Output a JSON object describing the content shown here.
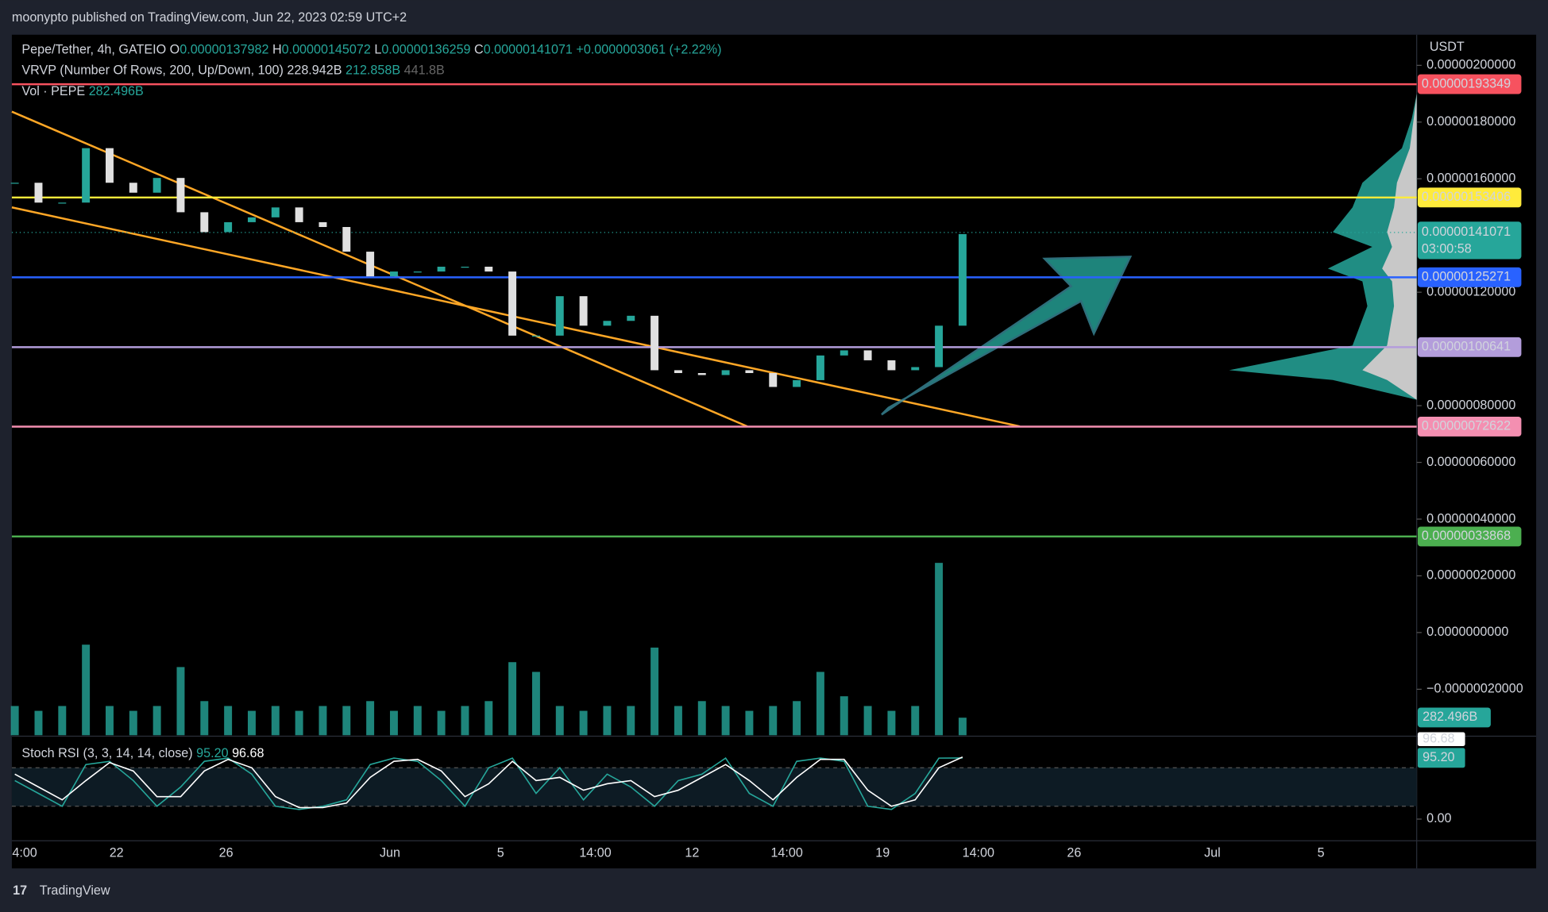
{
  "header": {
    "title": "moonypto published on TradingView.com, Jun 22, 2023 02:59 UTC+2"
  },
  "footer": {
    "brand": "TradingView"
  },
  "chart_data": [
    {
      "type": "candlestick",
      "symbol": "Pepe/Tether, 4h, GATEIO",
      "ohlc": [
        {
          "label": "O",
          "value": "0.00000137982"
        },
        {
          "label": "H",
          "value": "0.00000145072"
        },
        {
          "label": "L",
          "value": "0.00000136259"
        },
        {
          "label": "C",
          "value": "0.00000141071"
        }
      ],
      "change": "+0.0000003061 (+2.22%)",
      "indicator": {
        "name": "VRVP (Number Of Rows, 200, Up/Down, 100)",
        "values": [
          "228.942B",
          "212.858B",
          "441.8B"
        ]
      },
      "currency": "USDT",
      "ylim": [
        -3.62e-07,
        2.108e-06
      ],
      "yticks": [
        {
          "value": 2e-06,
          "label": "0.00000200000"
        },
        {
          "value": 1.8e-06,
          "label": "0.00000180000"
        },
        {
          "value": 1.6e-06,
          "label": "0.00000160000"
        },
        {
          "value": 1.2e-06,
          "label": "0.00000120000"
        },
        {
          "value": 8e-07,
          "label": "0.00000080000"
        },
        {
          "value": 6e-07,
          "label": "0.00000060000"
        },
        {
          "value": 4e-07,
          "label": "0.00000040000"
        },
        {
          "value": 2e-07,
          "label": "0.00000020000"
        },
        {
          "value": 0,
          "label": "0.0000000000"
        },
        {
          "value": -2e-07,
          "label": "−0.00000020000"
        }
      ],
      "closes": [
        1.586e-06,
        1.516e-06,
        1.516e-06,
        1.708e-06,
        1.586e-06,
        1.551e-06,
        1.603e-06,
        1.482e-06,
        1.412e-06,
        1.447e-06,
        1.464e-06,
        1.499e-06,
        1.447e-06,
        1.43e-06,
        1.343e-06,
        1.256e-06,
        1.273e-06,
        1.273e-06,
        1.29e-06,
        1.29e-06,
        1.273e-06,
        1.047e-06,
        1.047e-06,
        1.186e-06,
        1.082e-06,
        1.099e-06,
        1.117e-06,
        9.25e-07,
        9.15e-07,
        9.08e-07,
        9.25e-07,
        9.15e-07,
        8.66e-07,
        8.9e-07,
        9.77e-07,
        9.95e-07,
        9.6e-07,
        9.25e-07,
        9.36e-07,
        1.082e-06,
        1.405e-06
      ],
      "levels": [
        {
          "value": 1.93349e-06,
          "label": "0.00000193349",
          "color": "#f7525f"
        },
        {
          "value": 1.53406e-06,
          "label": "0.00000153406",
          "color": "#ffeb3b"
        },
        {
          "value": 1.25271e-06,
          "label": "0.00000125271",
          "color": "#2962ff"
        },
        {
          "value": 1.00641e-06,
          "label": "0.00000100641",
          "color": "#b39ddb"
        },
        {
          "value": 7.2622e-07,
          "label": "0.00000072622",
          "color": "#f48fb1"
        },
        {
          "value": 3.3868e-07,
          "label": "0.00000033868",
          "color": "#4caf50"
        }
      ],
      "last_price": {
        "value": 1.41071e-06,
        "label": "0.00000141071",
        "countdown": "03:00:58",
        "color": "#26a69a"
      },
      "x_labels": [
        "4:00",
        "22",
        "26",
        "Jun",
        "5",
        "14:00",
        "12",
        "14:00",
        "19",
        "14:00",
        "26",
        "Jul",
        "5"
      ]
    },
    {
      "type": "bar",
      "name": "Vol · PEPE",
      "color": "#26a69a",
      "ylim": [
        0,
        3500
      ],
      "values": [
        471,
        393,
        471,
        1460,
        471,
        393,
        471,
        1099,
        550,
        471,
        393,
        471,
        393,
        471,
        471,
        550,
        393,
        471,
        393,
        471,
        550,
        1178,
        1021,
        471,
        393,
        471,
        471,
        1413,
        471,
        550,
        471,
        393,
        471,
        550,
        1021,
        628,
        471,
        393,
        471,
        2779,
        282.496
      ],
      "last_label": "282.496B"
    },
    {
      "type": "line",
      "title": "Stoch RSI (3, 3, 14, 14, close)",
      "ylim": [
        -23,
        123
      ],
      "yticks": [
        {
          "value": 0,
          "label": "0.00"
        }
      ],
      "bands": [
        20,
        80
      ],
      "series": [
        {
          "color": "#26a69a",
          "values": [
            60,
            40,
            20,
            85,
            90,
            60,
            20,
            50,
            90,
            95,
            70,
            20,
            15,
            20,
            30,
            85,
            95,
            90,
            60,
            20,
            80,
            95,
            40,
            80,
            30,
            70,
            50,
            20,
            60,
            70,
            95,
            40,
            20,
            90,
            95,
            90,
            20,
            15,
            40,
            95,
            95.2
          ],
          "value_label": "95.20"
        },
        {
          "color": "#ffffff",
          "values": [
            70,
            50,
            30,
            60,
            88,
            75,
            35,
            35,
            75,
            93,
            80,
            35,
            18,
            18,
            25,
            65,
            90,
            93,
            75,
            35,
            55,
            90,
            60,
            65,
            45,
            55,
            60,
            35,
            45,
            65,
            85,
            60,
            30,
            65,
            93,
            93,
            45,
            20,
            30,
            80,
            96.68
          ],
          "value_label": "96.68"
        }
      ]
    }
  ]
}
